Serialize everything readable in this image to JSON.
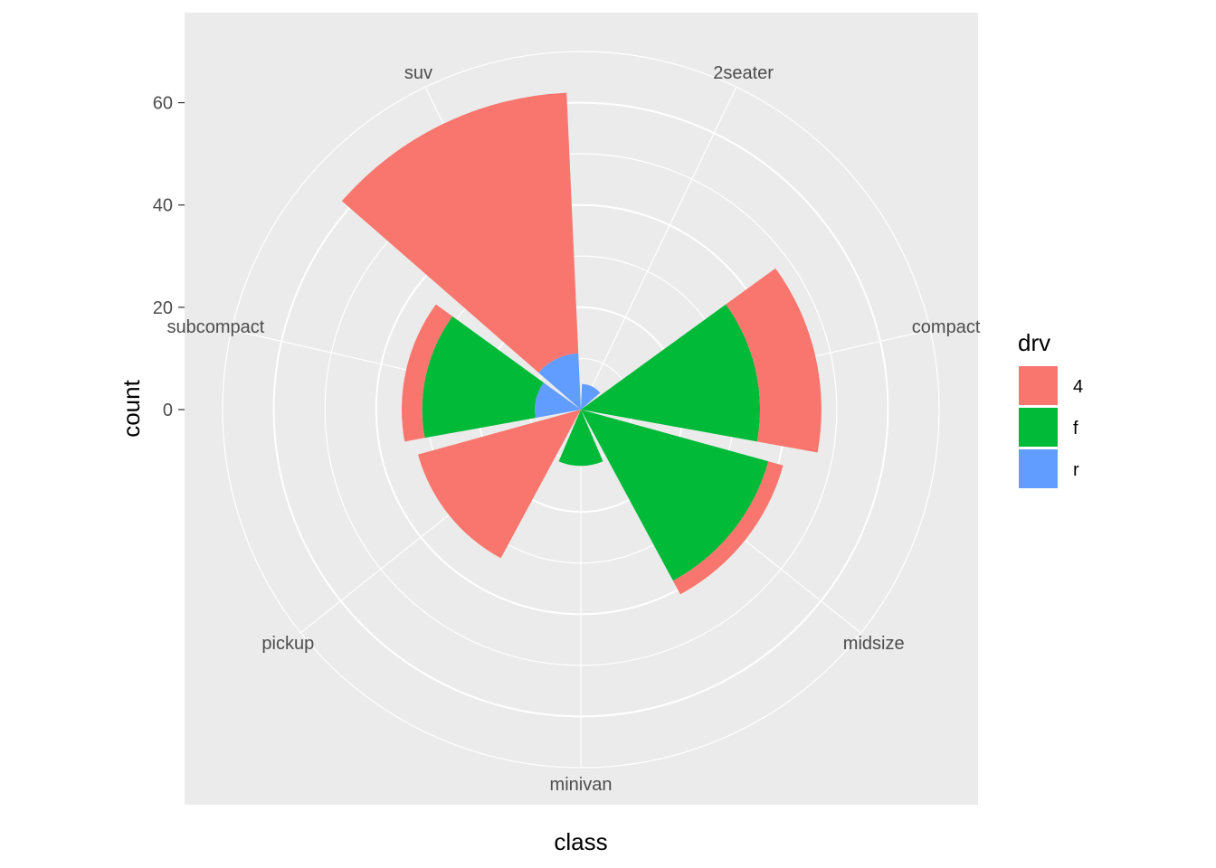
{
  "chart_data": {
    "type": "bar",
    "coord": "polar",
    "categories": [
      "2seater",
      "compact",
      "midsize",
      "minivan",
      "pickup",
      "subcompact",
      "suv"
    ],
    "series": [
      {
        "name": "4",
        "color": "#F8766D",
        "values": [
          0,
          12,
          3,
          0,
          33,
          4,
          51
        ]
      },
      {
        "name": "f",
        "color": "#00BA38",
        "values": [
          0,
          35,
          38,
          11,
          0,
          22,
          0
        ]
      },
      {
        "name": "r",
        "color": "#619CFF",
        "values": [
          5,
          0,
          0,
          0,
          0,
          9,
          11
        ]
      }
    ],
    "xlabel": "class",
    "ylabel": "count",
    "y_ticks": [
      "0",
      "20",
      "40",
      "60"
    ],
    "legend": {
      "title": "drv",
      "position": "right"
    },
    "background": "#EBEBEB",
    "grid": true
  }
}
